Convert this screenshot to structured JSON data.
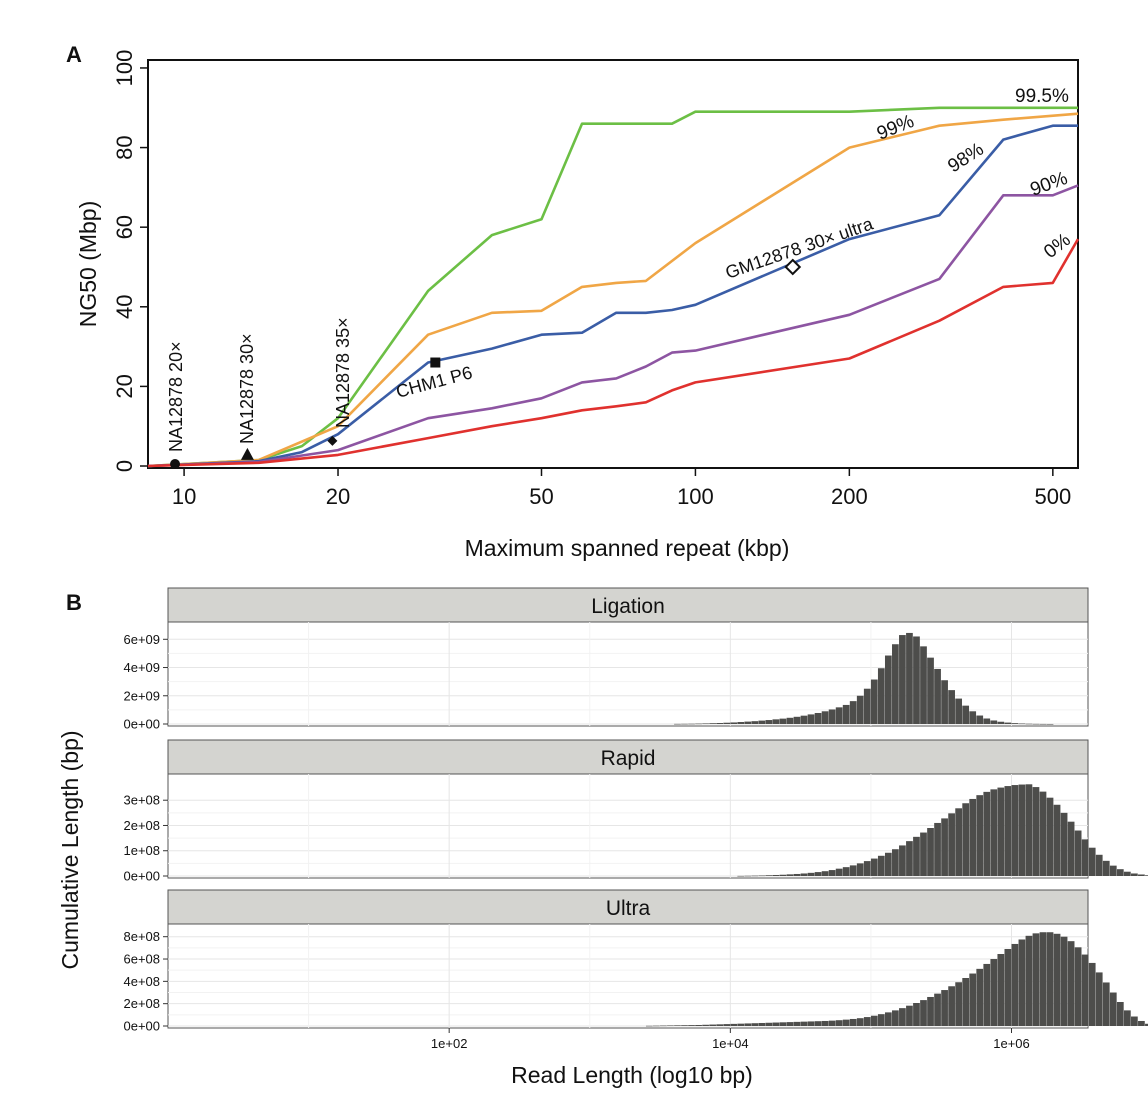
{
  "chart_data": [
    {
      "panel_label": "A",
      "type": "line",
      "xlabel": "Maximum spanned repeat (kbp)",
      "ylabel": "NG50 (Mbp)",
      "xscale": "log",
      "xlim": [
        8.5,
        560
      ],
      "ylim": [
        -0.5,
        102
      ],
      "x_ticks": [
        10,
        20,
        50,
        100,
        200,
        500
      ],
      "x_tick_labels": [
        "10",
        "20",
        "50",
        "100",
        "200",
        "500"
      ],
      "y_ticks": [
        0,
        20,
        40,
        60,
        80,
        100
      ],
      "y_tick_labels": [
        "0",
        "20",
        "40",
        "60",
        "80",
        "100"
      ],
      "series": [
        {
          "name": "99.5%",
          "color": "#6cbf45",
          "points": [
            [
              8.5,
              0
            ],
            [
              14,
              1.5
            ],
            [
              17,
              5
            ],
            [
              20,
              12
            ],
            [
              30,
              44
            ],
            [
              40,
              58
            ],
            [
              50,
              62
            ],
            [
              60,
              86
            ],
            [
              90,
              86
            ],
            [
              100,
              89
            ],
            [
              200,
              89
            ],
            [
              300,
              90
            ],
            [
              560,
              90
            ]
          ]
        },
        {
          "name": "99%",
          "color": "#f0a646",
          "points": [
            [
              8.5,
              0
            ],
            [
              14,
              1.5
            ],
            [
              20,
              10
            ],
            [
              30,
              33
            ],
            [
              40,
              38.5
            ],
            [
              50,
              39
            ],
            [
              60,
              45
            ],
            [
              70,
              46
            ],
            [
              80,
              46.5
            ],
            [
              100,
              56
            ],
            [
              200,
              80
            ],
            [
              300,
              85.5
            ],
            [
              400,
              87
            ],
            [
              560,
              88.5
            ]
          ]
        },
        {
          "name": "98%",
          "color": "#3a5da6",
          "points": [
            [
              8.5,
              0
            ],
            [
              14,
              1.2
            ],
            [
              17,
              3.5
            ],
            [
              20,
              8
            ],
            [
              30,
              26
            ],
            [
              40,
              29.5
            ],
            [
              50,
              33
            ],
            [
              60,
              33.5
            ],
            [
              70,
              38.5
            ],
            [
              80,
              38.5
            ],
            [
              90,
              39.2
            ],
            [
              100,
              40.5
            ],
            [
              200,
              57
            ],
            [
              300,
              63
            ],
            [
              400,
              82
            ],
            [
              500,
              85.5
            ],
            [
              560,
              85.5
            ]
          ]
        },
        {
          "name": "90%",
          "color": "#8d55a2",
          "points": [
            [
              8.5,
              0
            ],
            [
              14,
              1
            ],
            [
              20,
              4
            ],
            [
              30,
              12
            ],
            [
              40,
              14.5
            ],
            [
              50,
              17
            ],
            [
              60,
              21
            ],
            [
              70,
              22
            ],
            [
              80,
              25
            ],
            [
              90,
              28.5
            ],
            [
              100,
              29
            ],
            [
              200,
              38
            ],
            [
              300,
              47
            ],
            [
              400,
              68
            ],
            [
              500,
              68
            ],
            [
              560,
              70.5
            ]
          ]
        },
        {
          "name": "0%",
          "color": "#e0312e",
          "points": [
            [
              8.5,
              0
            ],
            [
              14,
              0.8
            ],
            [
              20,
              2.8
            ],
            [
              30,
              7
            ],
            [
              40,
              10
            ],
            [
              50,
              12
            ],
            [
              60,
              14
            ],
            [
              70,
              15
            ],
            [
              80,
              16
            ],
            [
              90,
              19
            ],
            [
              100,
              21
            ],
            [
              200,
              27
            ],
            [
              300,
              36.5
            ],
            [
              400,
              45
            ],
            [
              500,
              46
            ],
            [
              560,
              57
            ]
          ]
        }
      ],
      "line_labels": [
        "99.5%",
        "99%",
        "98%",
        "90%",
        "0%"
      ],
      "markers": [
        {
          "label": "NA12878 20×",
          "x": 9.6,
          "y": 0.5,
          "shape": "circle"
        },
        {
          "label": "NA12878 30×",
          "x": 13.3,
          "y": 2.8,
          "shape": "triangle"
        },
        {
          "label": "NA12878 35×",
          "x": 19.5,
          "y": 6.3,
          "shape": "diamond"
        },
        {
          "label": "CHM1 P6",
          "x": 31,
          "y": 26,
          "shape": "square"
        },
        {
          "label": "GM12878 30× ultra",
          "x": 155,
          "y": 50,
          "shape": "open-diamond"
        }
      ]
    },
    {
      "panel_label": "B",
      "type": "bar",
      "xlabel": "Read Length (log10 bp)",
      "ylabel": "Cumulative Length (bp)",
      "xscale": "log",
      "xlim": [
        1,
        3500000
      ],
      "x_ticks": [
        100,
        10000,
        1000000
      ],
      "x_tick_labels": [
        "1e+02",
        "1e+04",
        "1e+06"
      ],
      "bar_color": "#4d4d4b",
      "panels": [
        {
          "title": "Ligation",
          "ylim": [
            0,
            6800000000
          ],
          "y_ticks": [
            0,
            2000000000,
            4000000000,
            6000000000
          ],
          "y_tick_labels": [
            "0e+00",
            "2e+09",
            "4e+09",
            "6e+09"
          ],
          "log10_bin_start": 2.3,
          "bin_width_log10": 0.05,
          "values": [
            0,
            0,
            0,
            0,
            0,
            0,
            0,
            0,
            0,
            0,
            0,
            0,
            0,
            0,
            0,
            0,
            0,
            0,
            0,
            0,
            0,
            0,
            0,
            0,
            0,
            0,
            10000000,
            15000000,
            20000000,
            30000000,
            40000000,
            55000000,
            70000000,
            90000000,
            110000000,
            140000000,
            170000000,
            200000000,
            240000000,
            280000000,
            330000000,
            380000000,
            440000000,
            510000000,
            590000000,
            680000000,
            780000000,
            900000000,
            1030000000,
            1180000000,
            1350000000,
            1620000000,
            2000000000,
            2500000000,
            3150000000,
            3950000000,
            4850000000,
            5650000000,
            6300000000,
            6450000000,
            6200000000,
            5500000000,
            4700000000,
            3900000000,
            3100000000,
            2400000000,
            1800000000,
            1300000000,
            900000000,
            600000000,
            390000000,
            250000000,
            160000000,
            100000000,
            60000000,
            35000000,
            20000000,
            10000000,
            5000000,
            2000000
          ]
        },
        {
          "title": "Rapid",
          "ylim": [
            0,
            380000000
          ],
          "y_ticks": [
            0,
            100000000,
            200000000,
            300000000
          ],
          "y_tick_labels": [
            "0e+00",
            "1e+08",
            "2e+08",
            "3e+08"
          ],
          "log10_bin_start": 2.3,
          "bin_width_log10": 0.05,
          "values": [
            0,
            0,
            0,
            0,
            0,
            0,
            0,
            0,
            0,
            0,
            0,
            0,
            0,
            0,
            0,
            0,
            0,
            0,
            0,
            0,
            0,
            0,
            0,
            0,
            0,
            0,
            0,
            0,
            0,
            0,
            0,
            0,
            0,
            0,
            0,
            500000,
            1000000,
            1500000,
            2000000,
            3000000,
            4000000,
            5000000,
            6500000,
            8000000,
            10000000,
            12500000,
            15500000,
            19000000,
            23500000,
            29000000,
            35000000,
            42000000,
            50000000,
            59000000,
            69000000,
            80000000,
            92000000,
            106000000,
            121000000,
            138000000,
            155000000,
            172000000,
            190000000,
            210000000,
            228000000,
            248000000,
            268000000,
            288000000,
            305000000,
            320000000,
            333000000,
            343000000,
            350000000,
            356000000,
            360000000,
            362000000,
            363000000,
            352000000,
            334000000,
            310000000,
            282000000,
            250000000,
            215000000,
            180000000,
            145000000,
            112000000,
            84000000,
            60000000,
            41000000,
            27000000,
            17000000,
            10000000,
            6000000,
            3000000,
            1000000
          ]
        },
        {
          "title": "Ultra",
          "ylim": [
            0,
            860000000
          ],
          "y_ticks": [
            0,
            200000000,
            400000000,
            600000000,
            800000000
          ],
          "y_tick_labels": [
            "0e+00",
            "2e+08",
            "4e+08",
            "6e+08",
            "8e+08"
          ],
          "log10_bin_start": 2.3,
          "bin_width_log10": 0.05,
          "values": [
            0,
            0,
            0,
            0,
            0,
            0,
            0,
            0,
            0,
            0,
            0,
            0,
            0,
            0,
            0,
            0,
            0,
            0,
            0,
            0,
            0,
            0,
            2000000,
            3000000,
            4000000,
            5000000,
            6000000,
            7000000,
            8000000,
            9000000,
            11000000,
            13000000,
            15000000,
            17000000,
            19000000,
            21000000,
            23000000,
            25000000,
            27000000,
            29000000,
            31000000,
            33000000,
            35000000,
            37000000,
            39000000,
            41000000,
            43000000,
            45000000,
            48000000,
            52000000,
            57000000,
            63000000,
            70000000,
            80000000,
            92000000,
            106000000,
            122000000,
            140000000,
            160000000,
            182000000,
            206000000,
            232000000,
            260000000,
            290000000,
            322000000,
            356000000,
            392000000,
            430000000,
            470000000,
            512000000,
            556000000,
            600000000,
            645000000,
            690000000,
            735000000,
            775000000,
            808000000,
            830000000,
            840000000,
            840000000,
            826000000,
            800000000,
            760000000,
            705000000,
            640000000,
            565000000,
            480000000,
            390000000,
            300000000,
            215000000,
            140000000,
            85000000,
            45000000,
            20000000,
            8000000,
            3000000
          ]
        }
      ]
    }
  ]
}
